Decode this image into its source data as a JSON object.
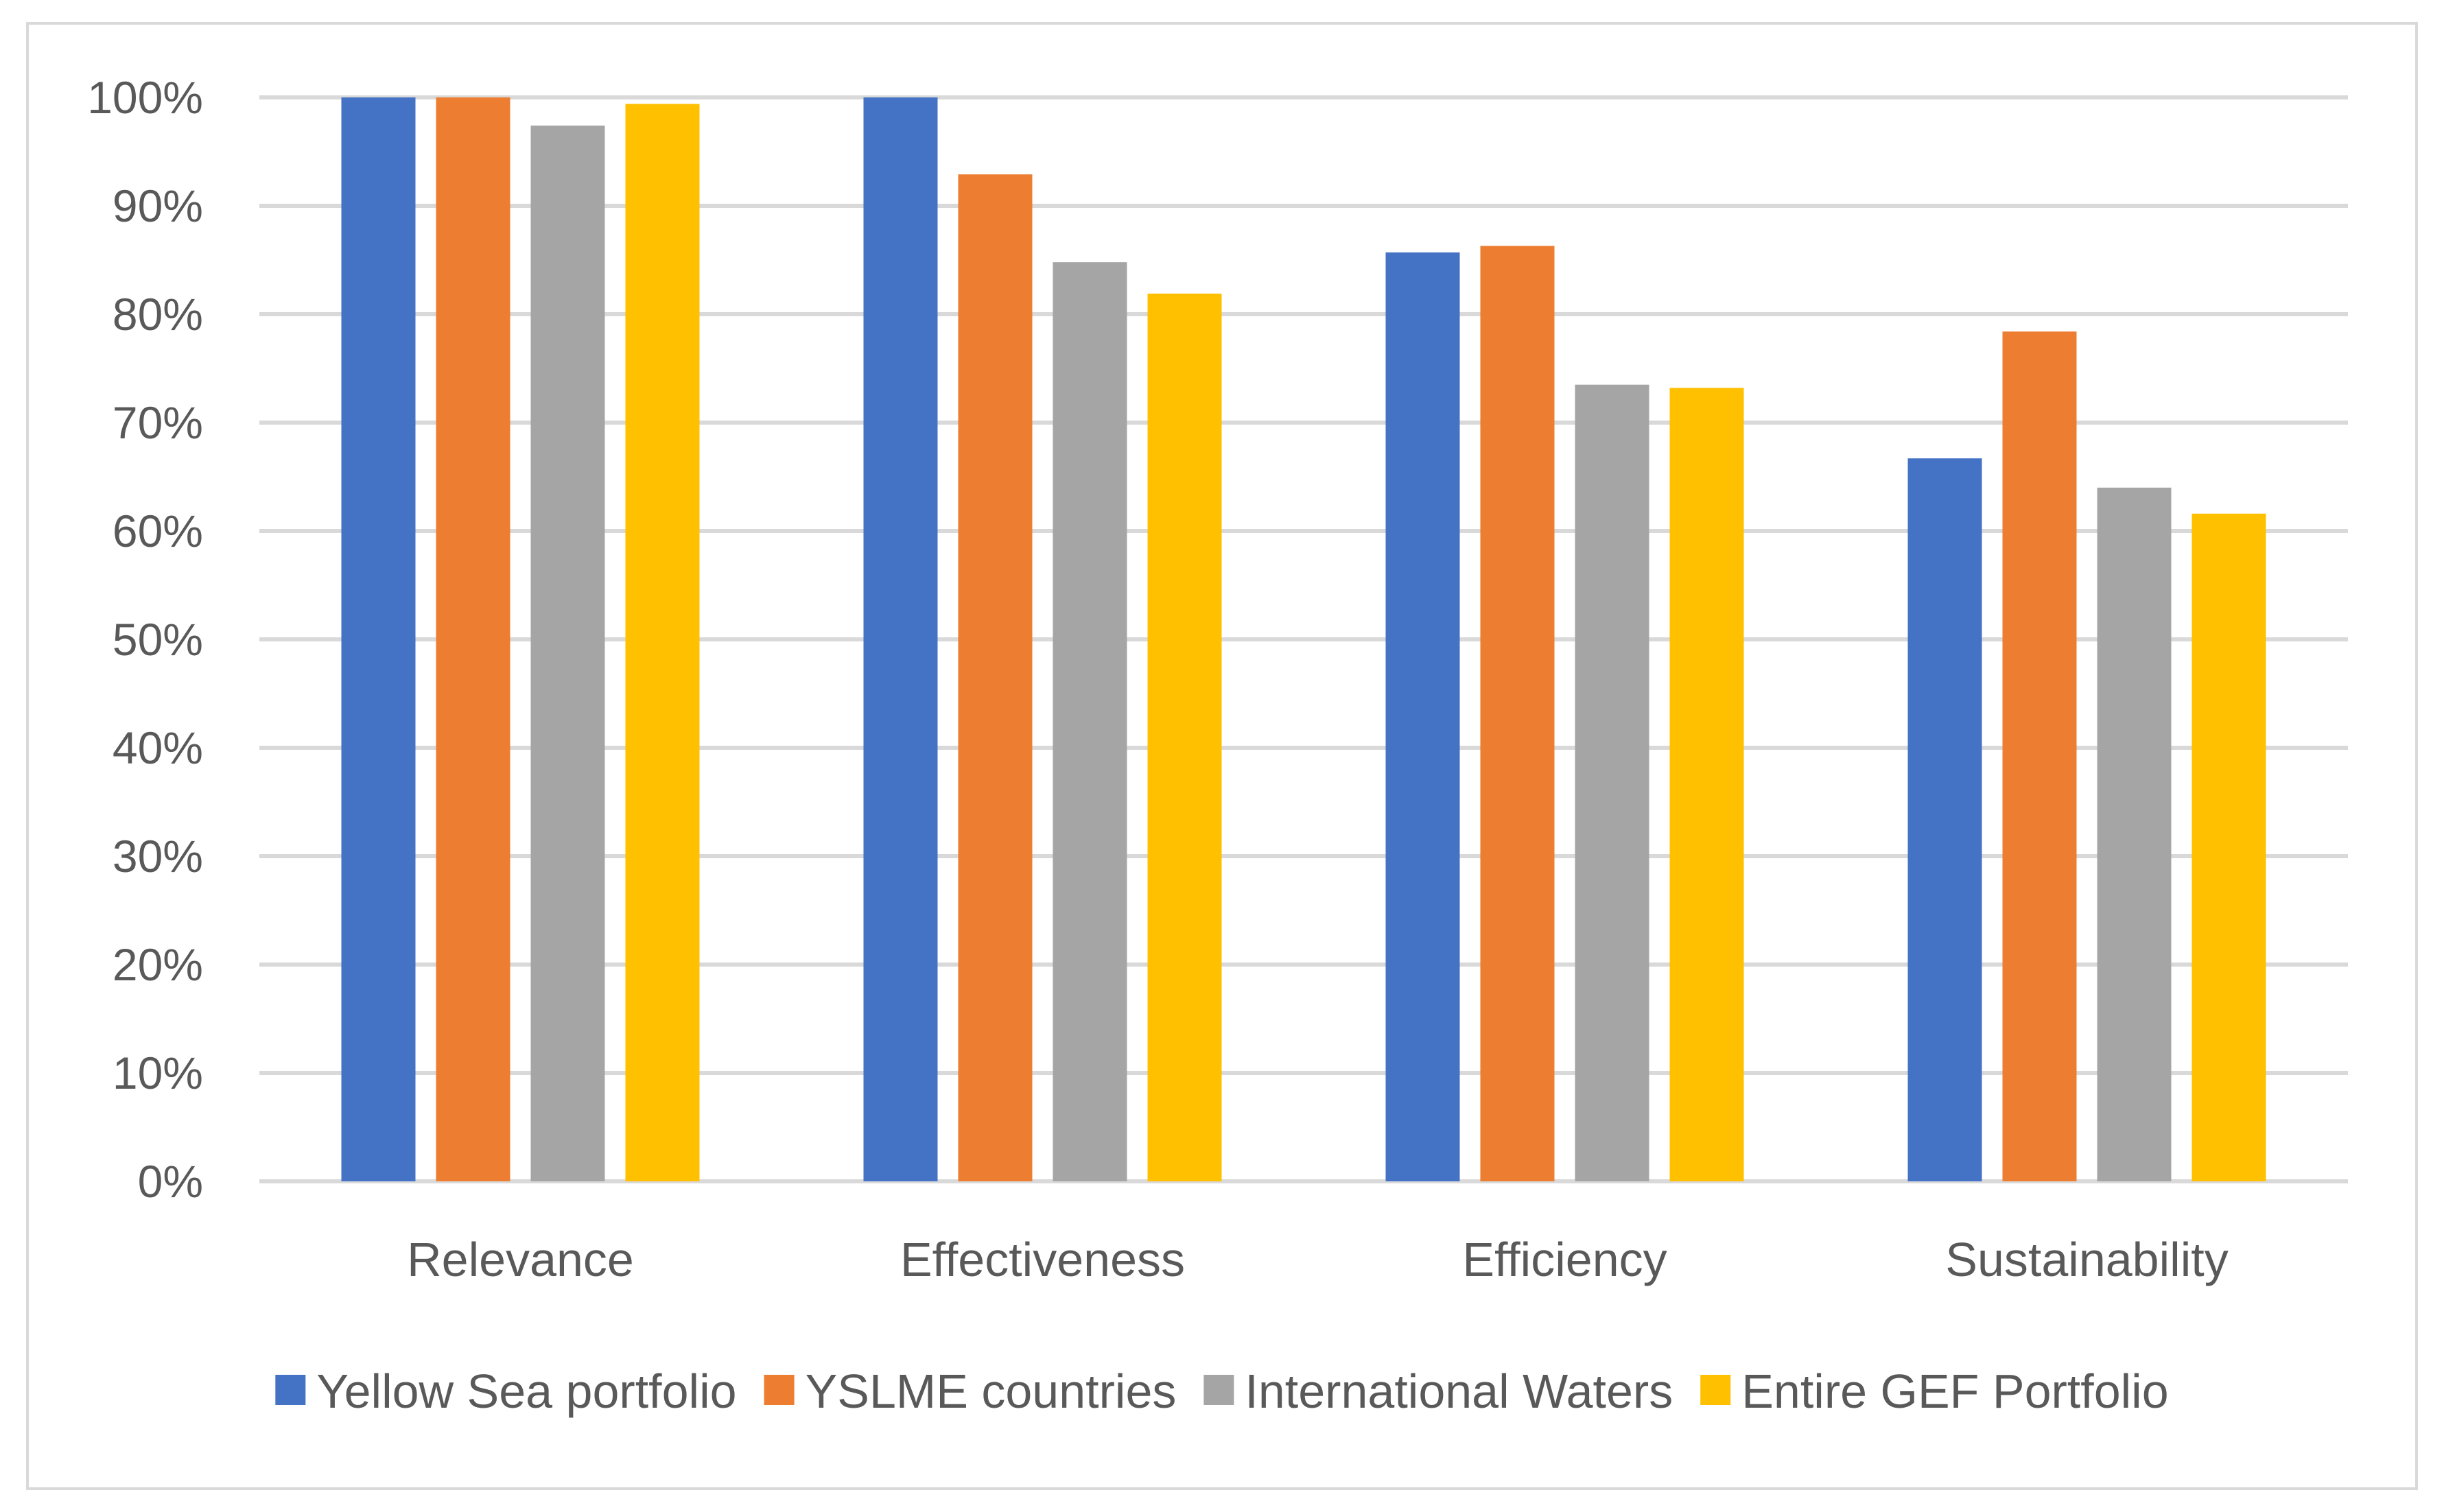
{
  "chart_data": {
    "type": "bar",
    "title": "",
    "xlabel": "",
    "ylabel": "",
    "categories": [
      "Relevance",
      "Effectiveness",
      "Efficiency",
      "Sustainability"
    ],
    "series": [
      {
        "name": "Yellow Sea portfolio",
        "color": "#4472c4",
        "values": [
          100,
          100,
          85.7,
          66.7
        ]
      },
      {
        "name": "YSLME countries",
        "color": "#ed7d31",
        "values": [
          100,
          92.9,
          86.3,
          78.4
        ]
      },
      {
        "name": "International Waters",
        "color": "#a5a5a5",
        "values": [
          97.4,
          84.8,
          73.5,
          64.0
        ]
      },
      {
        "name": "Entire GEF Portfolio",
        "color": "#ffc000",
        "values": [
          99.4,
          81.9,
          73.2,
          61.6
        ]
      }
    ],
    "ylim": [
      0,
      100
    ],
    "yticks": [
      0,
      10,
      20,
      30,
      40,
      50,
      60,
      70,
      80,
      90,
      100
    ],
    "ytick_labels": [
      "0%",
      "10%",
      "20%",
      "30%",
      "40%",
      "50%",
      "60%",
      "70%",
      "80%",
      "90%",
      "100%"
    ],
    "grid": true,
    "legend_position": "bottom"
  }
}
